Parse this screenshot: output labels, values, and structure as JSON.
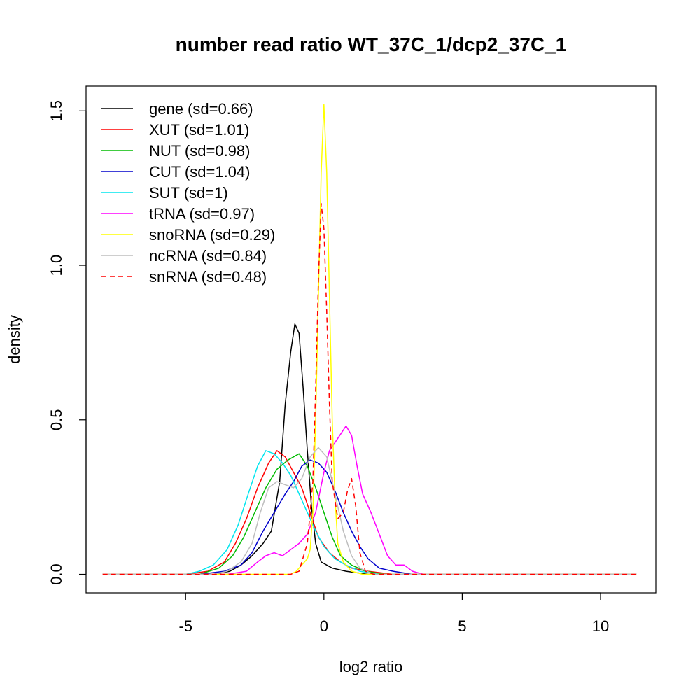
{
  "chart_data": {
    "type": "line",
    "title": "number read ratio WT_37C_1/dcp2_37C_1",
    "xlabel": "log2 ratio",
    "ylabel": "density",
    "xlim": [
      -8.6,
      12.0
    ],
    "ylim": [
      -0.06,
      1.58
    ],
    "xticks": [
      -5,
      0,
      5,
      10
    ],
    "xtick_labels": [
      "-5",
      "0",
      "5",
      "10"
    ],
    "yticks": [
      0.0,
      0.5,
      1.0,
      1.5
    ],
    "ytick_labels": [
      "0.0",
      "0.5",
      "1.0",
      "1.5"
    ],
    "grid": false,
    "legend_position": "top-left",
    "series": [
      {
        "name": "gene (sd=0.66)",
        "color": "#000000",
        "dash": "solid",
        "points": [
          [
            -8,
            0
          ],
          [
            -4,
            0
          ],
          [
            -3.4,
            0.01
          ],
          [
            -3,
            0.03
          ],
          [
            -2.6,
            0.06
          ],
          [
            -2.2,
            0.1
          ],
          [
            -1.9,
            0.14
          ],
          [
            -1.6,
            0.3
          ],
          [
            -1.4,
            0.55
          ],
          [
            -1.2,
            0.72
          ],
          [
            -1.05,
            0.81
          ],
          [
            -0.9,
            0.78
          ],
          [
            -0.75,
            0.6
          ],
          [
            -0.6,
            0.4
          ],
          [
            -0.45,
            0.22
          ],
          [
            -0.3,
            0.1
          ],
          [
            -0.1,
            0.04
          ],
          [
            0.3,
            0.02
          ],
          [
            0.8,
            0.01
          ],
          [
            1.6,
            0.0
          ],
          [
            11.3,
            0
          ]
        ]
      },
      {
        "name": "XUT (sd=1.01)",
        "color": "#ff0000",
        "dash": "solid",
        "points": [
          [
            -8,
            0
          ],
          [
            -5,
            0
          ],
          [
            -4.2,
            0.01
          ],
          [
            -3.6,
            0.04
          ],
          [
            -3.2,
            0.1
          ],
          [
            -2.8,
            0.18
          ],
          [
            -2.4,
            0.28
          ],
          [
            -2,
            0.36
          ],
          [
            -1.7,
            0.4
          ],
          [
            -1.4,
            0.38
          ],
          [
            -1.1,
            0.33
          ],
          [
            -0.8,
            0.28
          ],
          [
            -0.5,
            0.2
          ],
          [
            -0.2,
            0.12
          ],
          [
            0.2,
            0.07
          ],
          [
            0.6,
            0.04
          ],
          [
            1,
            0.02
          ],
          [
            1.6,
            0.01
          ],
          [
            2.5,
            0.0
          ],
          [
            11.3,
            0
          ]
        ]
      },
      {
        "name": "NUT (sd=0.98)",
        "color": "#00bb00",
        "dash": "solid",
        "points": [
          [
            -8,
            0
          ],
          [
            -4.5,
            0
          ],
          [
            -3.8,
            0.02
          ],
          [
            -3.3,
            0.06
          ],
          [
            -2.9,
            0.12
          ],
          [
            -2.5,
            0.2
          ],
          [
            -2.1,
            0.28
          ],
          [
            -1.7,
            0.34
          ],
          [
            -1.3,
            0.37
          ],
          [
            -0.9,
            0.39
          ],
          [
            -0.6,
            0.35
          ],
          [
            -0.3,
            0.28
          ],
          [
            0,
            0.2
          ],
          [
            0.3,
            0.12
          ],
          [
            0.6,
            0.06
          ],
          [
            1,
            0.03
          ],
          [
            1.5,
            0.01
          ],
          [
            2.2,
            0.0
          ],
          [
            11.3,
            0
          ]
        ]
      },
      {
        "name": "CUT (sd=1.04)",
        "color": "#0000cc",
        "dash": "solid",
        "points": [
          [
            -8,
            0
          ],
          [
            -4.5,
            0
          ],
          [
            -3.6,
            0.01
          ],
          [
            -3,
            0.03
          ],
          [
            -2.6,
            0.07
          ],
          [
            -2.2,
            0.14
          ],
          [
            -1.8,
            0.2
          ],
          [
            -1.4,
            0.26
          ],
          [
            -1.1,
            0.3
          ],
          [
            -0.8,
            0.35
          ],
          [
            -0.5,
            0.37
          ],
          [
            -0.2,
            0.36
          ],
          [
            0.1,
            0.33
          ],
          [
            0.4,
            0.27
          ],
          [
            0.7,
            0.2
          ],
          [
            1,
            0.14
          ],
          [
            1.3,
            0.09
          ],
          [
            1.6,
            0.05
          ],
          [
            2,
            0.02
          ],
          [
            2.5,
            0.01
          ],
          [
            3.2,
            0.0
          ],
          [
            11.3,
            0
          ]
        ]
      },
      {
        "name": "SUT (sd=1)",
        "color": "#00e5ee",
        "dash": "solid",
        "points": [
          [
            -8,
            0
          ],
          [
            -5,
            0
          ],
          [
            -4.5,
            0.01
          ],
          [
            -4,
            0.03
          ],
          [
            -3.5,
            0.08
          ],
          [
            -3.1,
            0.16
          ],
          [
            -2.7,
            0.27
          ],
          [
            -2.4,
            0.35
          ],
          [
            -2.1,
            0.4
          ],
          [
            -1.8,
            0.39
          ],
          [
            -1.5,
            0.36
          ],
          [
            -1.2,
            0.32
          ],
          [
            -0.9,
            0.26
          ],
          [
            -0.6,
            0.2
          ],
          [
            -0.3,
            0.14
          ],
          [
            0,
            0.09
          ],
          [
            0.4,
            0.05
          ],
          [
            0.8,
            0.03
          ],
          [
            1.3,
            0.01
          ],
          [
            2,
            0.0
          ],
          [
            11.3,
            0
          ]
        ]
      },
      {
        "name": "tRNA (sd=0.97)",
        "color": "#ff00ff",
        "dash": "solid",
        "points": [
          [
            -8,
            0
          ],
          [
            -3.5,
            0
          ],
          [
            -2.8,
            0.01
          ],
          [
            -2.4,
            0.04
          ],
          [
            -2.1,
            0.06
          ],
          [
            -1.8,
            0.07
          ],
          [
            -1.5,
            0.06
          ],
          [
            -1.2,
            0.08
          ],
          [
            -0.9,
            0.1
          ],
          [
            -0.6,
            0.13
          ],
          [
            -0.3,
            0.2
          ],
          [
            0,
            0.33
          ],
          [
            0.2,
            0.4
          ],
          [
            0.5,
            0.44
          ],
          [
            0.8,
            0.48
          ],
          [
            1,
            0.45
          ],
          [
            1.2,
            0.35
          ],
          [
            1.4,
            0.26
          ],
          [
            1.7,
            0.2
          ],
          [
            2,
            0.13
          ],
          [
            2.3,
            0.06
          ],
          [
            2.6,
            0.03
          ],
          [
            2.9,
            0.03
          ],
          [
            3.2,
            0.01
          ],
          [
            3.6,
            0.0
          ],
          [
            11.3,
            0
          ]
        ]
      },
      {
        "name": "snoRNA (sd=0.29)",
        "color": "#ffff00",
        "dash": "solid",
        "points": [
          [
            -8,
            0
          ],
          [
            -1.2,
            0
          ],
          [
            -1,
            0.01
          ],
          [
            -0.8,
            0.03
          ],
          [
            -0.6,
            0.05
          ],
          [
            -0.5,
            0.08
          ],
          [
            -0.4,
            0.2
          ],
          [
            -0.3,
            0.5
          ],
          [
            -0.2,
            0.9
          ],
          [
            -0.1,
            1.3
          ],
          [
            0,
            1.52
          ],
          [
            0.1,
            1.3
          ],
          [
            0.2,
            0.9
          ],
          [
            0.3,
            0.5
          ],
          [
            0.4,
            0.25
          ],
          [
            0.5,
            0.1
          ],
          [
            0.7,
            0.04
          ],
          [
            1,
            0.01
          ],
          [
            1.4,
            0.0
          ],
          [
            11.3,
            0
          ]
        ]
      },
      {
        "name": "ncRNA (sd=0.84)",
        "color": "#bebebe",
        "dash": "solid",
        "points": [
          [
            -8,
            0
          ],
          [
            -4,
            0
          ],
          [
            -3.5,
            0.01
          ],
          [
            -3,
            0.04
          ],
          [
            -2.6,
            0.1
          ],
          [
            -2.3,
            0.2
          ],
          [
            -2,
            0.28
          ],
          [
            -1.7,
            0.3
          ],
          [
            -1.4,
            0.29
          ],
          [
            -1.1,
            0.28
          ],
          [
            -0.8,
            0.31
          ],
          [
            -0.5,
            0.38
          ],
          [
            -0.2,
            0.41
          ],
          [
            0.1,
            0.38
          ],
          [
            0.4,
            0.26
          ],
          [
            0.7,
            0.14
          ],
          [
            1,
            0.06
          ],
          [
            1.3,
            0.02
          ],
          [
            1.8,
            0.0
          ],
          [
            11.3,
            0
          ]
        ]
      },
      {
        "name": "snRNA (sd=0.48)",
        "color": "#ff0000",
        "dash": "dashed",
        "points": [
          [
            -8,
            0
          ],
          [
            -1.2,
            0
          ],
          [
            -0.9,
            0.01
          ],
          [
            -0.6,
            0.1
          ],
          [
            -0.4,
            0.3
          ],
          [
            -0.3,
            0.6
          ],
          [
            -0.2,
            0.95
          ],
          [
            -0.1,
            1.2
          ],
          [
            0,
            1.12
          ],
          [
            0.1,
            0.85
          ],
          [
            0.2,
            0.55
          ],
          [
            0.3,
            0.3
          ],
          [
            0.5,
            0.18
          ],
          [
            0.7,
            0.2
          ],
          [
            0.85,
            0.27
          ],
          [
            1,
            0.31
          ],
          [
            1.15,
            0.22
          ],
          [
            1.3,
            0.07
          ],
          [
            1.5,
            0.01
          ],
          [
            1.8,
            0.0
          ],
          [
            11.3,
            0
          ]
        ]
      }
    ]
  }
}
